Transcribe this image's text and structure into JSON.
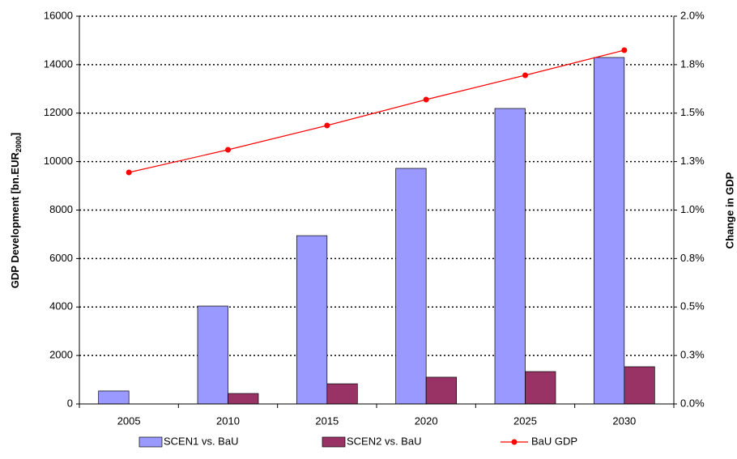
{
  "chart_data": {
    "type": "bar",
    "categories": [
      "2005",
      "2010",
      "2015",
      "2020",
      "2025",
      "2030"
    ],
    "series": [
      {
        "name": "SCEN1 vs. BaU",
        "color": "#9999ff",
        "axis": "y2",
        "values": [
          0.067,
          0.505,
          0.868,
          1.215,
          1.524,
          1.787
        ]
      },
      {
        "name": "SCEN2 vs. BaU",
        "color": "#993366",
        "axis": "y2",
        "values": [
          0,
          0.054,
          0.104,
          0.138,
          0.167,
          0.192
        ]
      },
      {
        "name": "BaU GDP",
        "color": "#ff0000",
        "type": "line",
        "values": [
          9553,
          10489,
          11490,
          12560,
          13562,
          14597
        ]
      }
    ],
    "y_label": [
      "GDP Development [bn.EUR",
      "2000",
      "]"
    ],
    "y2_label": "Change in GDP",
    "ylim": [
      0,
      16000
    ],
    "yticks": [
      0,
      2000,
      4000,
      6000,
      8000,
      10000,
      12000,
      14000,
      16000
    ],
    "y2lim": [
      0,
      2
    ],
    "y2ticks": [
      {
        "value": 0,
        "label": "0.0%"
      },
      {
        "value": 0.25,
        "label": "0.3%"
      },
      {
        "value": 0.5,
        "label": "0.5%"
      },
      {
        "value": 0.75,
        "label": "0.8%"
      },
      {
        "value": 1,
        "label": "1.0%"
      },
      {
        "value": 1.25,
        "label": "1.3%"
      },
      {
        "value": 1.5,
        "label": "1.5%"
      },
      {
        "value": 1.75,
        "label": "1.8%"
      },
      {
        "value": 2,
        "label": "2.0%"
      }
    ],
    "grid": true,
    "legend": "bottom"
  }
}
